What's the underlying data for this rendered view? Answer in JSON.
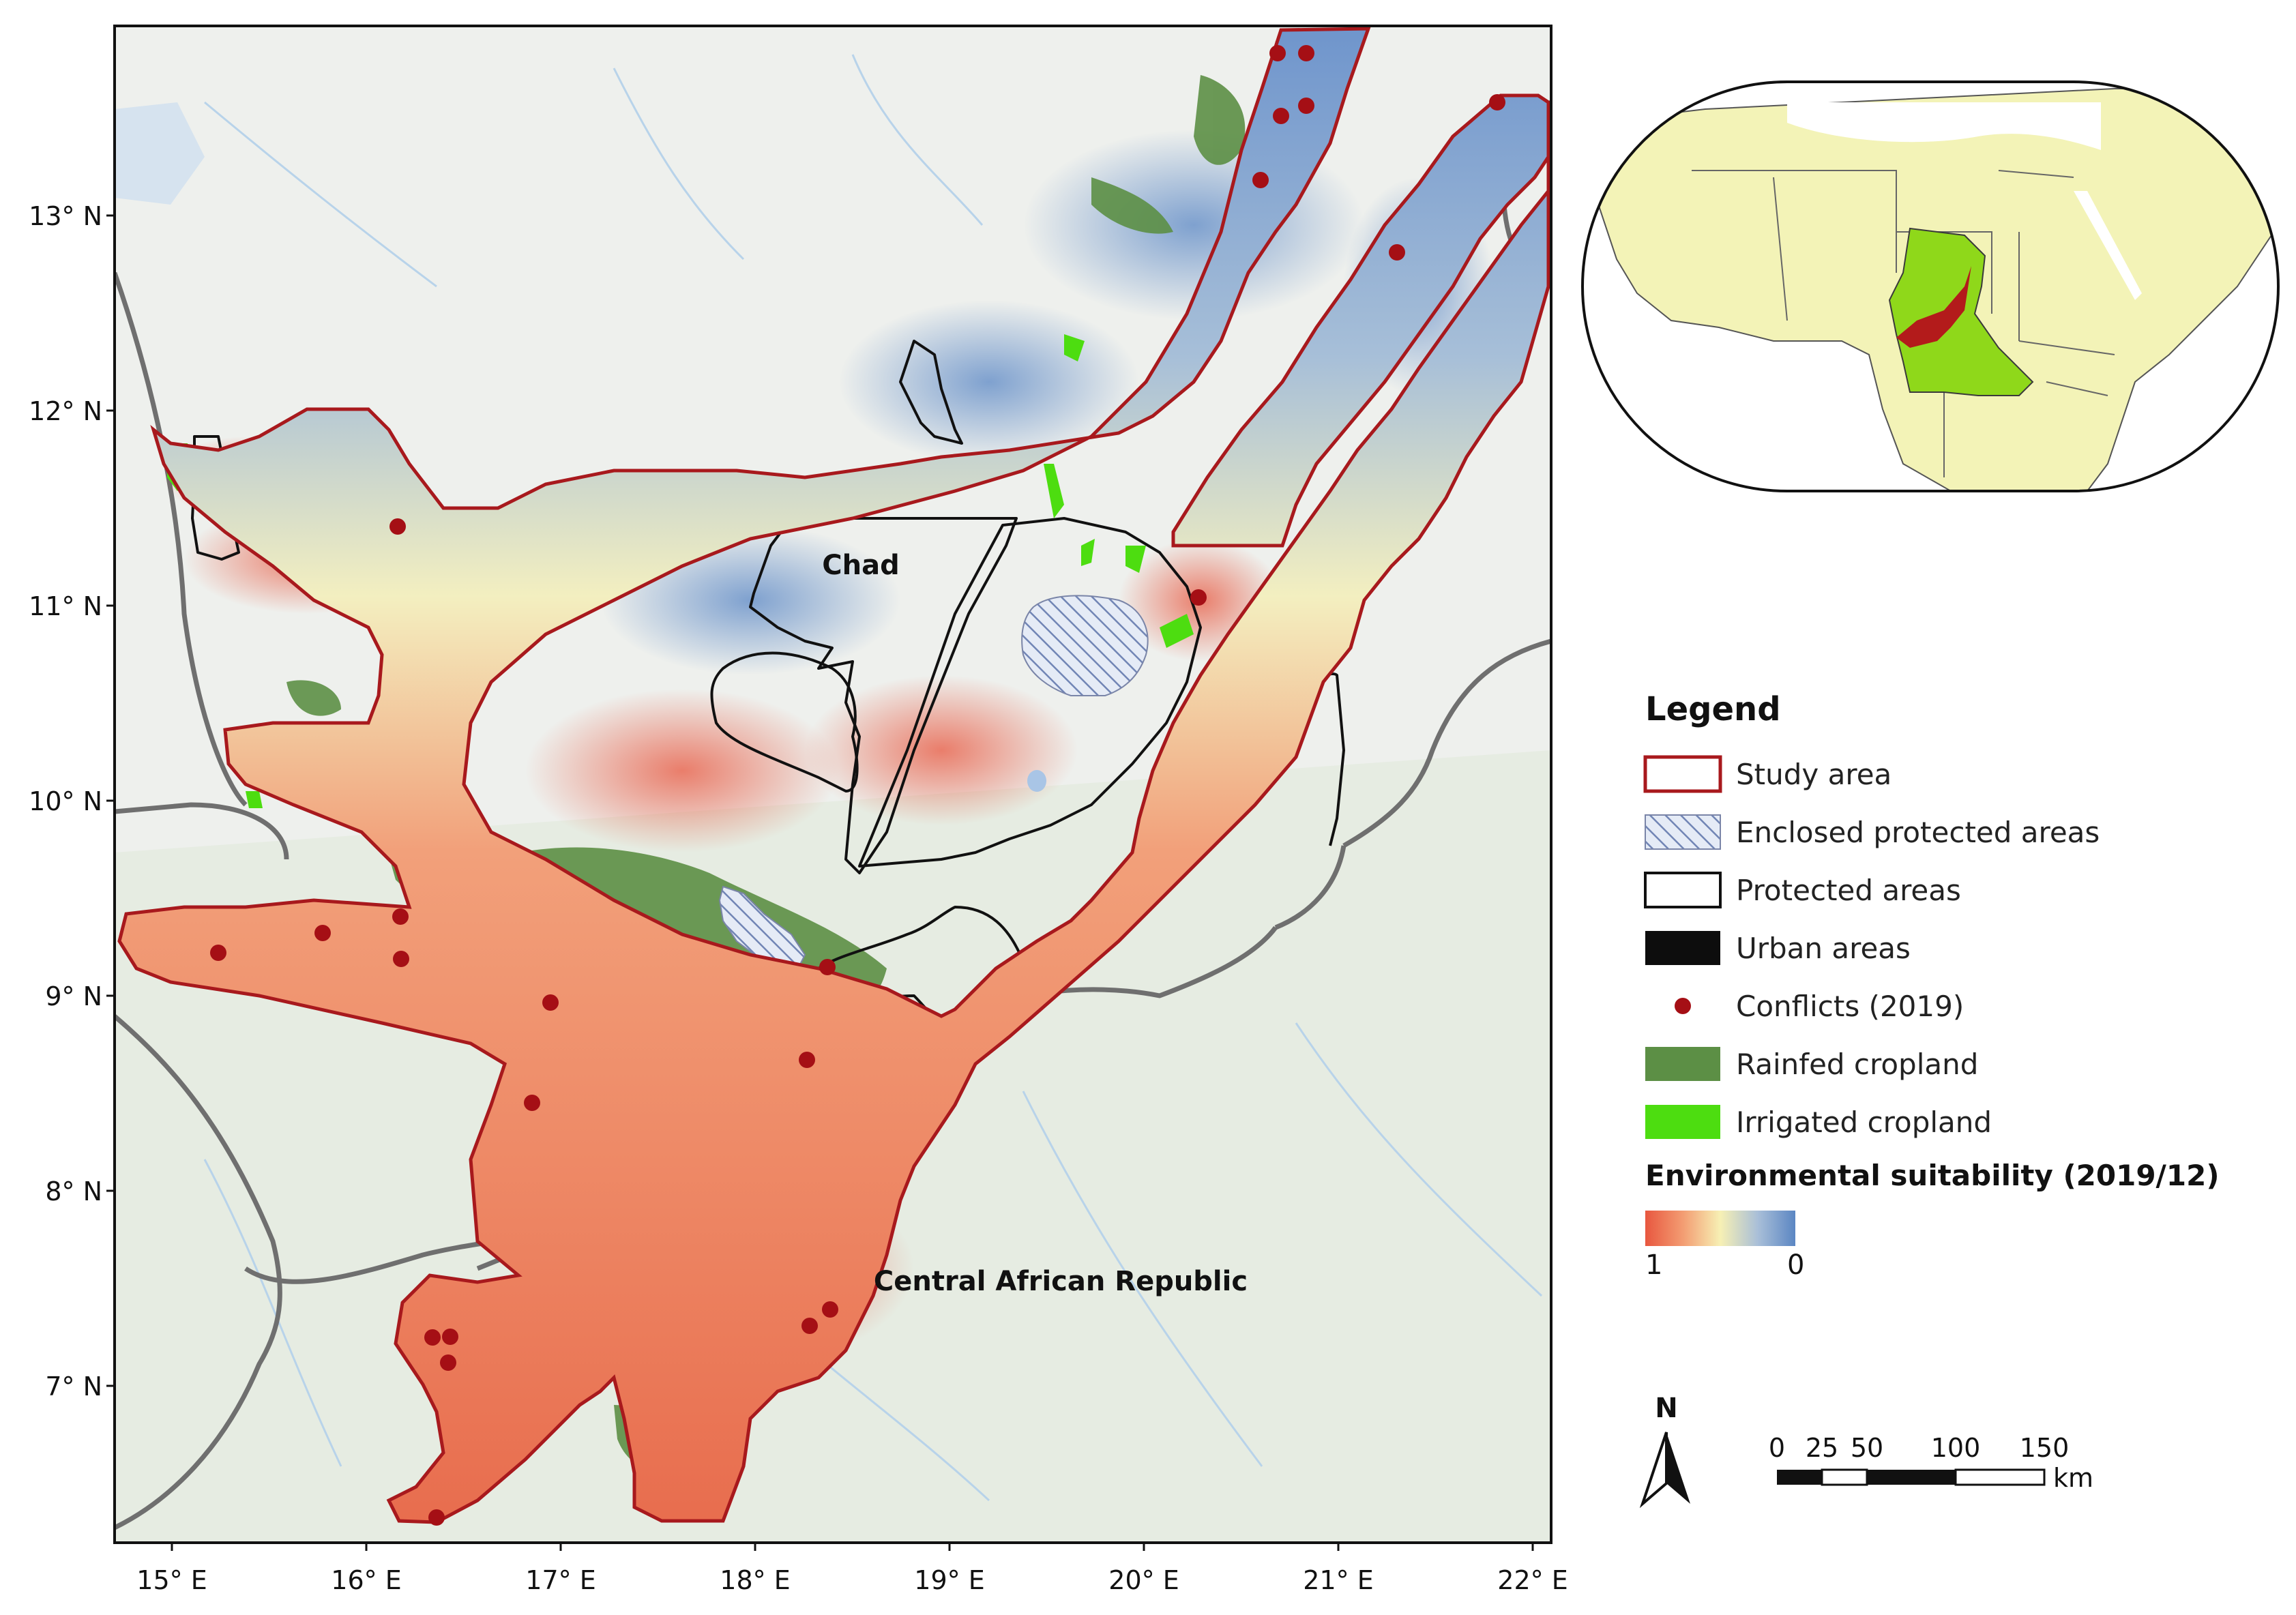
{
  "map": {
    "lat_ticks": [
      "13° N",
      "12° N",
      "11° N",
      "10° N",
      "9° N",
      "8° N",
      "7° N"
    ],
    "lon_ticks": [
      "15° E",
      "16° E",
      "17° E",
      "18° E",
      "19° E",
      "20° E",
      "21° E",
      "22° E"
    ],
    "labels": {
      "chad": "Chad",
      "car": "Central African Republic"
    },
    "conflict_count": 27
  },
  "legend": {
    "title": "Legend",
    "items": [
      {
        "key": "study",
        "label": "Study area"
      },
      {
        "key": "enclosed",
        "label": "Enclosed protected areas"
      },
      {
        "key": "protected",
        "label": "Protected areas"
      },
      {
        "key": "urban",
        "label": "Urban areas"
      },
      {
        "key": "conflicts",
        "label": "Conflicts (2019)"
      },
      {
        "key": "rainfed",
        "label": "Rainfed cropland"
      },
      {
        "key": "irrigated",
        "label": "Irrigated cropland"
      }
    ],
    "suitability_title": "Environmental suitability (2019/12)",
    "ramp_min": "1",
    "ramp_max": "0"
  },
  "north_arrow": "N",
  "scalebar": {
    "ticks": [
      "0",
      "25",
      "50",
      "100",
      "150"
    ],
    "unit": "km"
  },
  "colors": {
    "study_outline": "#a8191d",
    "conflict": "#a50f15",
    "rainfed": "#5c8f45",
    "irrigated": "#4ddd10",
    "suit_high": "#e8573f",
    "suit_mid": "#f7f0b4",
    "suit_low": "#5b86c3",
    "inset_land": "#f3f3b7",
    "chad": "#8fd81a",
    "study_inset": "#b31b1b"
  }
}
